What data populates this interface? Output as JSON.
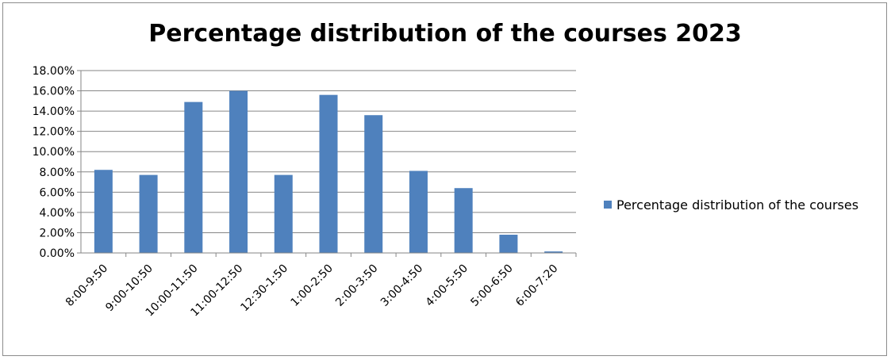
{
  "chart_data": {
    "type": "bar",
    "title": "Percentage distribution of the courses 2023",
    "categories": [
      "8:00-9:50",
      "9:00-10:50",
      "10:00-11:50",
      "11:00-12:50",
      "12:30-1:50",
      "1:00-2:50",
      "2:00-3:50",
      "3:00-4:50",
      "4:00-5:50",
      "5:00-6:50",
      "6:00-7:20"
    ],
    "series": [
      {
        "name": "Percentage distribution of the courses",
        "values": [
          8.2,
          7.7,
          14.9,
          16.0,
          7.7,
          15.6,
          13.6,
          8.1,
          6.4,
          1.8,
          0.15
        ]
      }
    ],
    "ylim": [
      0,
      18
    ],
    "yticks": [
      "0.00%",
      "2.00%",
      "4.00%",
      "6.00%",
      "8.00%",
      "10.00%",
      "12.00%",
      "14.00%",
      "16.00%",
      "18.00%"
    ],
    "xlabel": "",
    "ylabel": "",
    "grid": true,
    "legend_position": "right",
    "bar_color": "#4f81bd"
  }
}
